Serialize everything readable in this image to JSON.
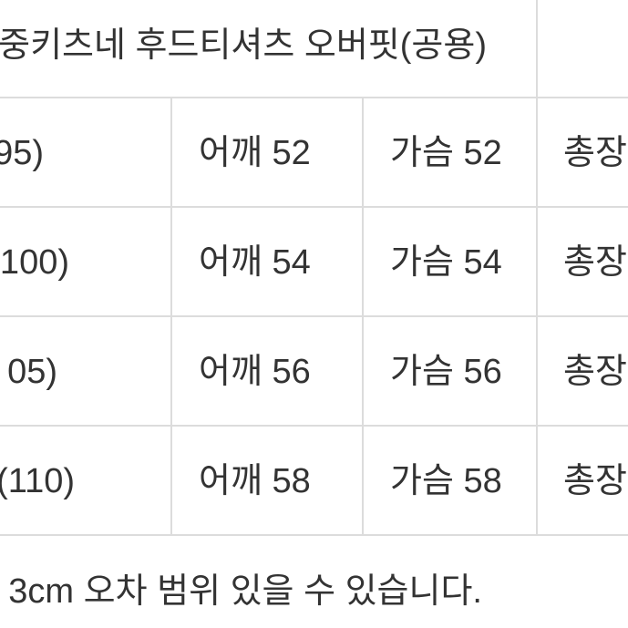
{
  "table": {
    "title": "중키츠네 후드티셔츠 오버핏(공용)",
    "rows": [
      {
        "size": "95)",
        "shoulder": "어깨 52",
        "chest": "가슴 52",
        "length": "총장"
      },
      {
        "size": "(100)",
        "shoulder": "어깨 54",
        "chest": "가슴 54",
        "length": "총장"
      },
      {
        "size": "05)",
        "shoulder": "어깨 56",
        "chest": "가슴 56",
        "length": "총장"
      },
      {
        "size": "(110)",
        "shoulder": "어깨 58",
        "chest": "가슴 58",
        "length": "총장"
      }
    ]
  },
  "note": "3cm 오차 범위 있을 수 있습니다."
}
